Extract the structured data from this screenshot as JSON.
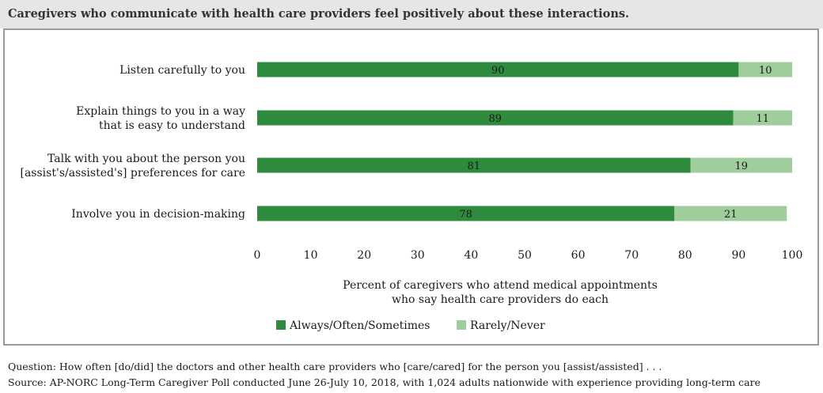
{
  "header": {
    "title": "Caregivers who communicate with health care providers feel positively about these interactions."
  },
  "chart_data": {
    "type": "bar",
    "orientation": "horizontal",
    "stacked": true,
    "categories": [
      [
        "Listen carefully to you"
      ],
      [
        "Explain things to you in a way",
        "that is easy to understand"
      ],
      [
        "Talk with you about the person you",
        "[assist's/assisted's] preferences for care"
      ],
      [
        "Involve you in decision-making"
      ]
    ],
    "series": [
      {
        "name": "Always/Often/Sometimes",
        "color": "#2e8b3e",
        "values": [
          90,
          89,
          81,
          78
        ]
      },
      {
        "name": "Rarely/Never",
        "color": "#9fcd9c",
        "values": [
          10,
          11,
          19,
          21
        ]
      }
    ],
    "xlabel": [
      "Percent of caregivers who attend medical appointments",
      "who say health care providers do each"
    ],
    "xlim": [
      0,
      100
    ],
    "xticks": [
      0,
      10,
      20,
      30,
      40,
      50,
      60,
      70,
      80,
      90,
      100
    ],
    "grid": false,
    "legend_position": "bottom"
  },
  "footnotes": {
    "question": "Question: How often [do/did] the doctors and other health care providers who [care/cared] for the person you [assist/assisted] . . .",
    "source": "Source: AP-NORC Long-Term Caregiver Poll conducted June 26-July 10, 2018, with 1,024 adults nationwide with experience providing long-term care"
  }
}
